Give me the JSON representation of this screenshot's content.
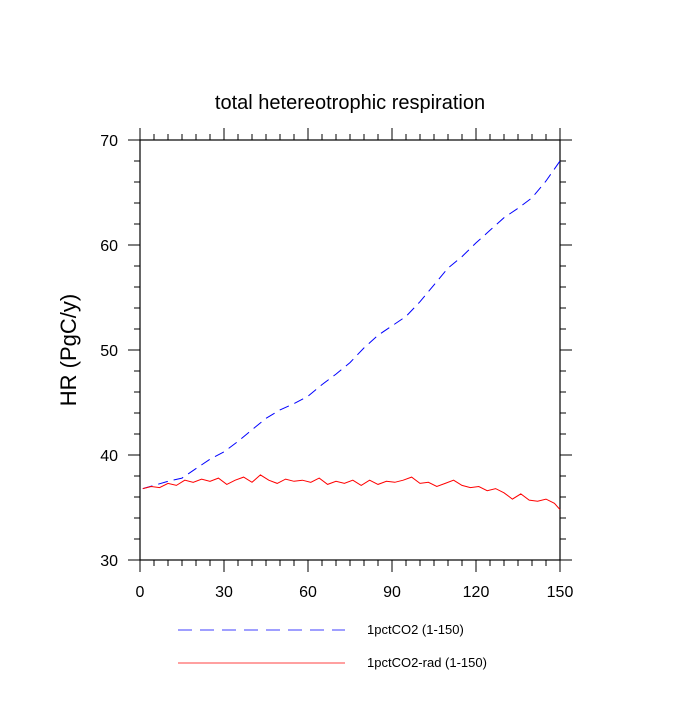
{
  "chart_data": {
    "type": "line",
    "title": "total hetereotrophic respiration",
    "xlabel": "",
    "ylabel": "HR  (PgC/y)",
    "xlim": [
      0,
      150
    ],
    "ylim": [
      30,
      70
    ],
    "xticks": [
      0,
      30,
      60,
      90,
      120,
      150
    ],
    "yticks": [
      30,
      40,
      50,
      60,
      70
    ],
    "grid": false,
    "legend_position": "bottom",
    "series": [
      {
        "name": "1pctCO2 (1-150)",
        "color": "#0000ff",
        "dash": "dashed",
        "x": [
          1,
          5,
          10,
          15,
          20,
          25,
          30,
          35,
          40,
          45,
          50,
          55,
          60,
          65,
          70,
          75,
          80,
          85,
          90,
          95,
          100,
          105,
          110,
          115,
          120,
          125,
          130,
          135,
          140,
          145,
          150
        ],
        "values": [
          36.8,
          37.1,
          37.5,
          37.8,
          38.7,
          39.6,
          40.3,
          41.3,
          42.4,
          43.5,
          44.3,
          44.9,
          45.6,
          46.7,
          47.7,
          48.8,
          50.2,
          51.4,
          52.3,
          53.2,
          54.6,
          56.2,
          57.8,
          58.9,
          60.2,
          61.4,
          62.6,
          63.5,
          64.5,
          66.1,
          68.0
        ]
      },
      {
        "name": "1pctCO2-rad (1-150)",
        "color": "#ff0000",
        "dash": "solid",
        "x": [
          1,
          4,
          7,
          10,
          13,
          16,
          19,
          22,
          25,
          28,
          31,
          34,
          37,
          40,
          43,
          46,
          49,
          52,
          55,
          58,
          61,
          64,
          67,
          70,
          73,
          76,
          79,
          82,
          85,
          88,
          91,
          94,
          97,
          100,
          103,
          106,
          109,
          112,
          115,
          118,
          121,
          124,
          127,
          130,
          133,
          136,
          139,
          142,
          145,
          148,
          150
        ],
        "values": [
          36.8,
          37.0,
          36.9,
          37.3,
          37.1,
          37.6,
          37.4,
          37.7,
          37.5,
          37.8,
          37.2,
          37.6,
          37.9,
          37.4,
          38.1,
          37.6,
          37.3,
          37.7,
          37.5,
          37.6,
          37.4,
          37.8,
          37.2,
          37.5,
          37.3,
          37.6,
          37.1,
          37.6,
          37.2,
          37.5,
          37.4,
          37.6,
          37.9,
          37.3,
          37.4,
          37.0,
          37.3,
          37.6,
          37.1,
          36.9,
          37.0,
          36.6,
          36.8,
          36.4,
          35.8,
          36.3,
          35.7,
          35.6,
          35.8,
          35.4,
          34.8
        ]
      }
    ]
  }
}
